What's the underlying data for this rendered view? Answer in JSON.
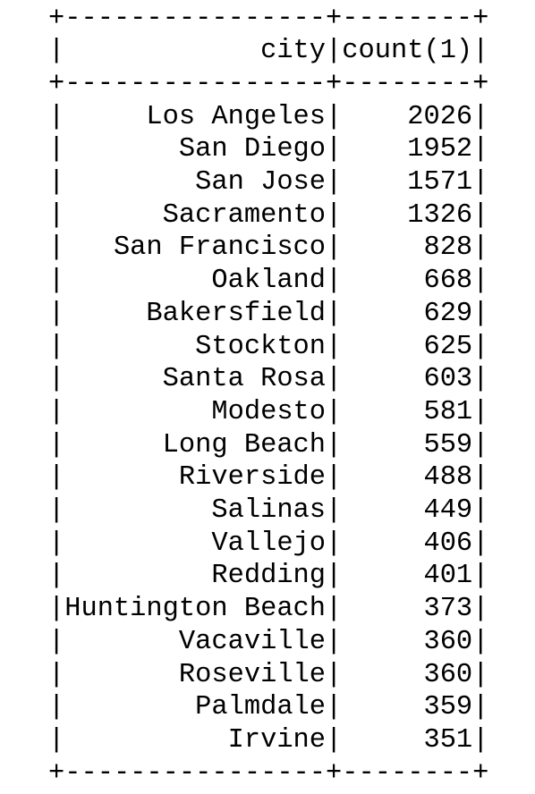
{
  "table": {
    "headers": [
      "city",
      "count(1)"
    ],
    "rows": [
      [
        "Los Angeles",
        "2026"
      ],
      [
        "San Diego",
        "1952"
      ],
      [
        "San Jose",
        "1571"
      ],
      [
        "Sacramento",
        "1326"
      ],
      [
        "San Francisco",
        "828"
      ],
      [
        "Oakland",
        "668"
      ],
      [
        "Bakersfield",
        "629"
      ],
      [
        "Stockton",
        "625"
      ],
      [
        "Santa Rosa",
        "603"
      ],
      [
        "Modesto",
        "581"
      ],
      [
        "Long Beach",
        "559"
      ],
      [
        "Riverside",
        "488"
      ],
      [
        "Salinas",
        "449"
      ],
      [
        "Vallejo",
        "406"
      ],
      [
        "Redding",
        "401"
      ],
      [
        "Huntington Beach",
        "373"
      ],
      [
        "Vacaville",
        "360"
      ],
      [
        "Roseville",
        "360"
      ],
      [
        "Palmdale",
        "359"
      ],
      [
        "Irvine",
        "351"
      ]
    ]
  },
  "colors": {
    "text": "#000000",
    "background": "#ffffff"
  }
}
